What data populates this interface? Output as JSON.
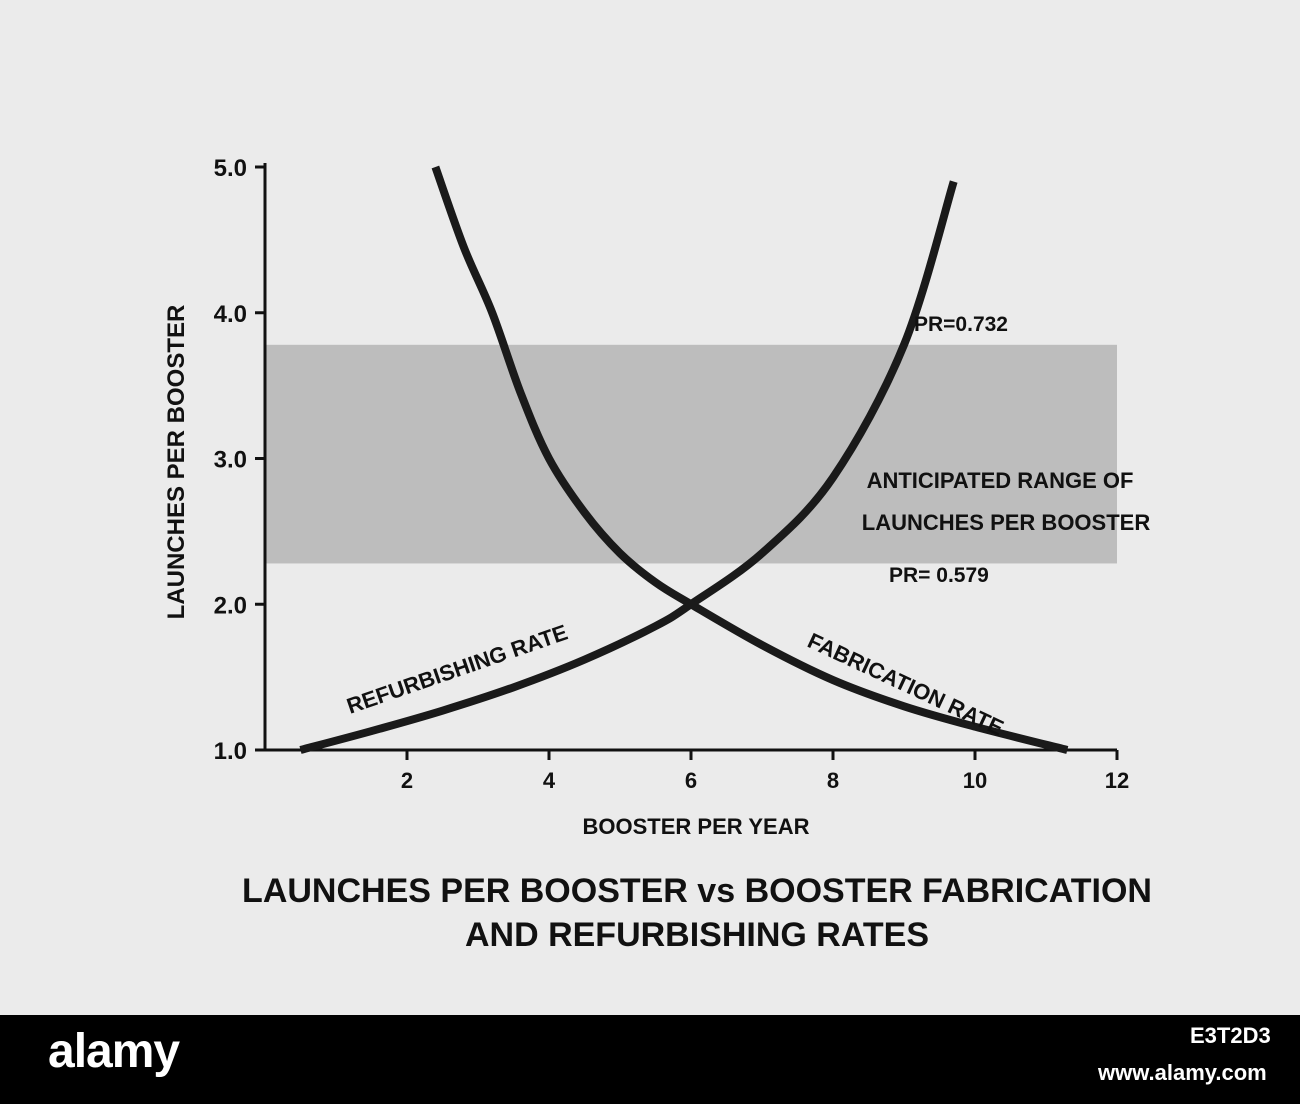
{
  "chart_data": {
    "type": "line",
    "title": "LAUNCHES PER BOOSTER vs BOOSTER FABRICATION",
    "title_line2": "AND REFURBISHING RATES",
    "xlabel": "BOOSTER PER YEAR",
    "ylabel": "LAUNCHES PER BOOSTER",
    "xlim": [
      0,
      12
    ],
    "ylim": [
      1.0,
      5.0
    ],
    "x_ticks": [
      "2",
      "4",
      "6",
      "8",
      "10",
      "12"
    ],
    "y_ticks": [
      "1.0",
      "2.0",
      "3.0",
      "4.0",
      "5.0"
    ],
    "grid": false,
    "band": {
      "label_line1": "ANTICIPATED RANGE OF",
      "label_line2": "LAUNCHES PER BOOSTER",
      "y_from": 2.28,
      "y_to": 3.78,
      "color": "#bdbdbd"
    },
    "series": [
      {
        "name": "REFURBISHING RATE",
        "x": [
          0.5,
          1.5,
          2.5,
          3.5,
          4.5,
          5.5,
          6.0,
          7.0,
          8.0,
          9.0,
          9.7
        ],
        "y": [
          1.0,
          1.13,
          1.27,
          1.43,
          1.62,
          1.85,
          2.0,
          2.35,
          2.87,
          3.78,
          4.9
        ]
      },
      {
        "name": "FABRICATION RATE",
        "x": [
          2.4,
          2.8,
          3.2,
          3.6,
          4.0,
          4.5,
          5.0,
          5.5,
          6.0,
          7.0,
          8.0,
          9.0,
          10.0,
          11.3
        ],
        "y": [
          5.0,
          4.45,
          4.0,
          3.45,
          3.0,
          2.63,
          2.35,
          2.15,
          2.0,
          1.72,
          1.48,
          1.3,
          1.16,
          1.0
        ]
      }
    ],
    "annotations": {
      "pr_high": "PR=0.732",
      "pr_low": "PR= 0.579"
    },
    "colors": {
      "curve": "#1a1a1a",
      "background": "#ebebeb",
      "band": "#bdbdbd"
    }
  },
  "footer": {
    "logo": "alamy",
    "image_id": "E3T2D3",
    "url": "www.alamy.com"
  }
}
